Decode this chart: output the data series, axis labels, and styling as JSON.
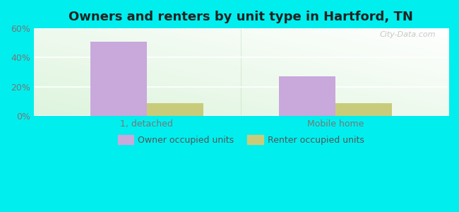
{
  "title": "Owners and renters by unit type in Hartford, TN",
  "categories": [
    "1, detached",
    "Mobile home"
  ],
  "owner_values": [
    51,
    27
  ],
  "renter_values": [
    9,
    9
  ],
  "owner_color": "#c9a8dc",
  "renter_color": "#c8cc7a",
  "ylim": [
    0,
    60
  ],
  "yticks": [
    0,
    20,
    40,
    60
  ],
  "ytick_labels": [
    "0%",
    "20%",
    "40%",
    "60%"
  ],
  "bar_width": 0.3,
  "background_color": "#00eeee",
  "plot_bg_top": "#f0f8ee",
  "plot_bg_bottom": "#c8e8cc",
  "title_fontsize": 13,
  "tick_fontsize": 9,
  "legend_fontsize": 9,
  "watermark": "City-Data.com"
}
